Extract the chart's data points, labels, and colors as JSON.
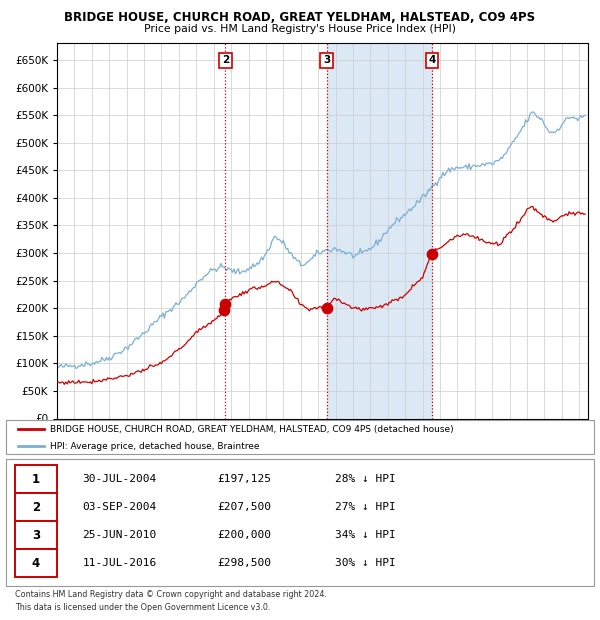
{
  "title1": "BRIDGE HOUSE, CHURCH ROAD, GREAT YELDHAM, HALSTEAD, CO9 4PS",
  "title2": "Price paid vs. HM Land Registry's House Price Index (HPI)",
  "legend_line1": "BRIDGE HOUSE, CHURCH ROAD, GREAT YELDHAM, HALSTEAD, CO9 4PS (detached house)",
  "legend_line2": "HPI: Average price, detached house, Braintree",
  "table_rows": [
    {
      "num": 1,
      "date": "30-JUL-2004",
      "price": "£197,125",
      "hpi": "28% ↓ HPI"
    },
    {
      "num": 2,
      "date": "03-SEP-2004",
      "price": "£207,500",
      "hpi": "27% ↓ HPI"
    },
    {
      "num": 3,
      "date": "25-JUN-2010",
      "price": "£200,000",
      "hpi": "34% ↓ HPI"
    },
    {
      "num": 4,
      "date": "11-JUL-2016",
      "price": "£298,500",
      "hpi": "30% ↓ HPI"
    }
  ],
  "footnote1": "Contains HM Land Registry data © Crown copyright and database right 2024.",
  "footnote2": "This data is licensed under the Open Government Licence v3.0.",
  "sale_dates_num": [
    2004.58,
    2004.67,
    2010.48,
    2016.53
  ],
  "sale_prices": [
    197125,
    207500,
    200000,
    298500
  ],
  "vline_dates": [
    2004.67,
    2010.48,
    2016.53
  ],
  "vline_labels": [
    "2",
    "3",
    "4"
  ],
  "shade_start": 2010.48,
  "shade_end": 2016.53,
  "red_color": "#cc0000",
  "blue_color": "#7bafd4",
  "shade_color": "#dce9f5",
  "grid_color": "#cccccc",
  "ylim": [
    0,
    680000
  ],
  "xlim_start": 1995.0,
  "xlim_end": 2025.5,
  "hpi_keypoints": [
    [
      1995.0,
      93000
    ],
    [
      1996.0,
      96000
    ],
    [
      1997.0,
      100000
    ],
    [
      1998.0,
      110000
    ],
    [
      1999.0,
      128000
    ],
    [
      2000.0,
      155000
    ],
    [
      2001.0,
      185000
    ],
    [
      2002.0,
      210000
    ],
    [
      2002.5,
      225000
    ],
    [
      2003.0,
      245000
    ],
    [
      2003.5,
      260000
    ],
    [
      2004.0,
      270000
    ],
    [
      2004.5,
      275000
    ],
    [
      2005.0,
      268000
    ],
    [
      2005.5,
      265000
    ],
    [
      2006.0,
      272000
    ],
    [
      2006.5,
      280000
    ],
    [
      2007.0,
      298000
    ],
    [
      2007.5,
      330000
    ],
    [
      2008.0,
      318000
    ],
    [
      2008.5,
      295000
    ],
    [
      2009.0,
      278000
    ],
    [
      2009.5,
      285000
    ],
    [
      2010.0,
      300000
    ],
    [
      2010.5,
      305000
    ],
    [
      2011.0,
      308000
    ],
    [
      2011.5,
      302000
    ],
    [
      2012.0,
      295000
    ],
    [
      2012.5,
      298000
    ],
    [
      2013.0,
      308000
    ],
    [
      2013.5,
      322000
    ],
    [
      2014.0,
      342000
    ],
    [
      2014.5,
      358000
    ],
    [
      2015.0,
      370000
    ],
    [
      2015.5,
      385000
    ],
    [
      2016.0,
      400000
    ],
    [
      2016.5,
      418000
    ],
    [
      2017.0,
      438000
    ],
    [
      2017.5,
      450000
    ],
    [
      2018.0,
      455000
    ],
    [
      2018.5,
      455000
    ],
    [
      2019.0,
      458000
    ],
    [
      2019.5,
      460000
    ],
    [
      2020.0,
      462000
    ],
    [
      2020.5,
      470000
    ],
    [
      2021.0,
      490000
    ],
    [
      2021.5,
      515000
    ],
    [
      2022.0,
      540000
    ],
    [
      2022.3,
      555000
    ],
    [
      2022.6,
      548000
    ],
    [
      2022.9,
      540000
    ],
    [
      2023.2,
      522000
    ],
    [
      2023.5,
      518000
    ],
    [
      2023.8,
      525000
    ],
    [
      2024.0,
      535000
    ],
    [
      2024.3,
      542000
    ],
    [
      2024.6,
      548000
    ],
    [
      2024.9,
      542000
    ],
    [
      2025.3,
      548000
    ]
  ],
  "pp_keypoints": [
    [
      1995.0,
      65000
    ],
    [
      1996.0,
      66000
    ],
    [
      1997.0,
      67000
    ],
    [
      1998.0,
      72000
    ],
    [
      1999.0,
      78000
    ],
    [
      2000.0,
      88000
    ],
    [
      2001.0,
      100000
    ],
    [
      2002.0,
      125000
    ],
    [
      2002.5,
      140000
    ],
    [
      2003.0,
      155000
    ],
    [
      2003.5,
      168000
    ],
    [
      2004.0,
      178000
    ],
    [
      2004.3,
      185000
    ],
    [
      2004.58,
      197125
    ],
    [
      2004.67,
      207500
    ],
    [
      2004.9,
      215000
    ],
    [
      2005.5,
      225000
    ],
    [
      2006.0,
      232000
    ],
    [
      2007.0,
      242000
    ],
    [
      2007.5,
      248000
    ],
    [
      2008.0,
      240000
    ],
    [
      2008.5,
      228000
    ],
    [
      2009.0,
      205000
    ],
    [
      2009.5,
      198000
    ],
    [
      2010.0,
      202000
    ],
    [
      2010.48,
      200000
    ],
    [
      2010.8,
      215000
    ],
    [
      2011.0,
      218000
    ],
    [
      2011.5,
      210000
    ],
    [
      2012.0,
      200000
    ],
    [
      2012.5,
      198000
    ],
    [
      2013.0,
      200000
    ],
    [
      2013.5,
      203000
    ],
    [
      2014.0,
      208000
    ],
    [
      2014.5,
      215000
    ],
    [
      2015.0,
      225000
    ],
    [
      2015.5,
      242000
    ],
    [
      2016.0,
      258000
    ],
    [
      2016.53,
      298500
    ],
    [
      2017.0,
      310000
    ],
    [
      2017.5,
      322000
    ],
    [
      2018.0,
      332000
    ],
    [
      2018.5,
      335000
    ],
    [
      2019.0,
      328000
    ],
    [
      2019.5,
      322000
    ],
    [
      2020.0,
      315000
    ],
    [
      2020.5,
      318000
    ],
    [
      2021.0,
      338000
    ],
    [
      2021.5,
      355000
    ],
    [
      2022.0,
      378000
    ],
    [
      2022.3,
      385000
    ],
    [
      2022.6,
      375000
    ],
    [
      2022.9,
      368000
    ],
    [
      2023.2,
      362000
    ],
    [
      2023.5,
      358000
    ],
    [
      2023.8,
      362000
    ],
    [
      2024.0,
      368000
    ],
    [
      2024.3,
      372000
    ],
    [
      2024.6,
      370000
    ],
    [
      2025.3,
      372000
    ]
  ]
}
